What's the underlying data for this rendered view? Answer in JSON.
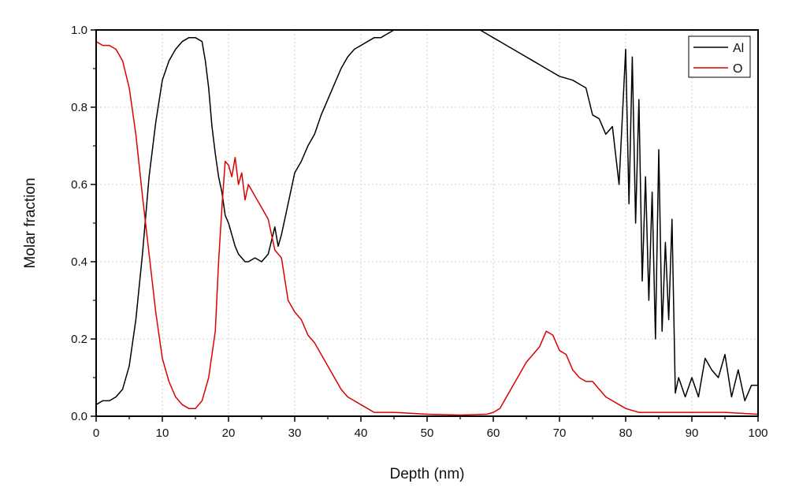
{
  "chart_data": {
    "type": "line",
    "xlabel": "Depth (nm)",
    "ylabel": "Molar fraction",
    "xlim": [
      0,
      100
    ],
    "ylim": [
      0,
      1.0
    ],
    "x_ticks": [
      "0",
      "10",
      "20",
      "30",
      "40",
      "50",
      "60",
      "70",
      "80",
      "90",
      "100"
    ],
    "y_ticks": [
      "0.0",
      "0.2",
      "0.4",
      "0.6",
      "0.8",
      "1.0"
    ],
    "grid": true,
    "legend_position": "top-right",
    "series": [
      {
        "name": "Al",
        "color": "#000000",
        "points": [
          [
            0,
            0.03
          ],
          [
            1,
            0.04
          ],
          [
            2,
            0.04
          ],
          [
            3,
            0.05
          ],
          [
            4,
            0.07
          ],
          [
            5,
            0.13
          ],
          [
            6,
            0.25
          ],
          [
            7,
            0.42
          ],
          [
            8,
            0.62
          ],
          [
            9,
            0.76
          ],
          [
            10,
            0.87
          ],
          [
            11,
            0.92
          ],
          [
            12,
            0.95
          ],
          [
            13,
            0.97
          ],
          [
            14,
            0.98
          ],
          [
            15,
            0.98
          ],
          [
            16,
            0.97
          ],
          [
            16.5,
            0.92
          ],
          [
            17,
            0.85
          ],
          [
            17.5,
            0.75
          ],
          [
            18,
            0.68
          ],
          [
            18.5,
            0.62
          ],
          [
            19,
            0.58
          ],
          [
            19.5,
            0.52
          ],
          [
            20,
            0.5
          ],
          [
            20.5,
            0.47
          ],
          [
            21,
            0.44
          ],
          [
            21.5,
            0.42
          ],
          [
            22,
            0.41
          ],
          [
            22.5,
            0.4
          ],
          [
            23,
            0.4
          ],
          [
            24,
            0.41
          ],
          [
            25,
            0.4
          ],
          [
            26,
            0.42
          ],
          [
            27,
            0.49
          ],
          [
            27.5,
            0.44
          ],
          [
            28,
            0.47
          ],
          [
            29,
            0.55
          ],
          [
            30,
            0.63
          ],
          [
            31,
            0.66
          ],
          [
            32,
            0.7
          ],
          [
            33,
            0.73
          ],
          [
            34,
            0.78
          ],
          [
            35,
            0.82
          ],
          [
            36,
            0.86
          ],
          [
            37,
            0.9
          ],
          [
            38,
            0.93
          ],
          [
            39,
            0.95
          ],
          [
            40,
            0.96
          ],
          [
            41,
            0.97
          ],
          [
            42,
            0.98
          ],
          [
            43,
            0.98
          ],
          [
            44,
            0.99
          ],
          [
            45,
            1.0
          ],
          [
            47,
            1.0
          ],
          [
            50,
            1.0
          ],
          [
            55,
            1.0
          ],
          [
            58,
            1.0
          ],
          [
            59,
            0.99
          ],
          [
            60,
            0.98
          ],
          [
            62,
            0.96
          ],
          [
            64,
            0.94
          ],
          [
            66,
            0.92
          ],
          [
            68,
            0.9
          ],
          [
            70,
            0.88
          ],
          [
            72,
            0.87
          ],
          [
            73,
            0.86
          ],
          [
            74,
            0.85
          ],
          [
            75,
            0.78
          ],
          [
            76,
            0.77
          ],
          [
            77,
            0.73
          ],
          [
            78,
            0.75
          ],
          [
            79,
            0.6
          ],
          [
            80,
            0.95
          ],
          [
            80.5,
            0.55
          ],
          [
            81,
            0.93
          ],
          [
            81.5,
            0.5
          ],
          [
            82,
            0.82
          ],
          [
            82.5,
            0.35
          ],
          [
            83,
            0.62
          ],
          [
            83.5,
            0.3
          ],
          [
            84,
            0.58
          ],
          [
            84.5,
            0.2
          ],
          [
            85,
            0.69
          ],
          [
            85.5,
            0.22
          ],
          [
            86,
            0.45
          ],
          [
            86.5,
            0.25
          ],
          [
            87,
            0.51
          ],
          [
            87.5,
            0.06
          ],
          [
            88,
            0.1
          ],
          [
            89,
            0.05
          ],
          [
            90,
            0.1
          ],
          [
            91,
            0.05
          ],
          [
            92,
            0.15
          ],
          [
            93,
            0.12
          ],
          [
            94,
            0.1
          ],
          [
            95,
            0.16
          ],
          [
            96,
            0.05
          ],
          [
            97,
            0.12
          ],
          [
            98,
            0.04
          ],
          [
            99,
            0.08
          ],
          [
            100,
            0.08
          ]
        ]
      },
      {
        "name": "O",
        "color": "#dd0000",
        "points": [
          [
            0,
            0.97
          ],
          [
            1,
            0.96
          ],
          [
            2,
            0.96
          ],
          [
            3,
            0.95
          ],
          [
            4,
            0.92
          ],
          [
            5,
            0.85
          ],
          [
            6,
            0.73
          ],
          [
            7,
            0.57
          ],
          [
            8,
            0.42
          ],
          [
            9,
            0.27
          ],
          [
            10,
            0.15
          ],
          [
            11,
            0.09
          ],
          [
            12,
            0.05
          ],
          [
            13,
            0.03
          ],
          [
            14,
            0.02
          ],
          [
            15,
            0.02
          ],
          [
            16,
            0.04
          ],
          [
            17,
            0.1
          ],
          [
            18,
            0.22
          ],
          [
            18.5,
            0.4
          ],
          [
            19,
            0.54
          ],
          [
            19.5,
            0.66
          ],
          [
            20,
            0.65
          ],
          [
            20.5,
            0.62
          ],
          [
            21,
            0.67
          ],
          [
            21.5,
            0.6
          ],
          [
            22,
            0.63
          ],
          [
            22.5,
            0.56
          ],
          [
            23,
            0.6
          ],
          [
            24,
            0.57
          ],
          [
            25,
            0.54
          ],
          [
            26,
            0.51
          ],
          [
            27,
            0.43
          ],
          [
            28,
            0.41
          ],
          [
            29,
            0.3
          ],
          [
            30,
            0.27
          ],
          [
            31,
            0.25
          ],
          [
            32,
            0.21
          ],
          [
            33,
            0.19
          ],
          [
            34,
            0.16
          ],
          [
            35,
            0.13
          ],
          [
            36,
            0.1
          ],
          [
            37,
            0.07
          ],
          [
            38,
            0.05
          ],
          [
            39,
            0.04
          ],
          [
            40,
            0.03
          ],
          [
            41,
            0.02
          ],
          [
            42,
            0.01
          ],
          [
            43,
            0.01
          ],
          [
            45,
            0.01
          ],
          [
            50,
            0.005
          ],
          [
            55,
            0.003
          ],
          [
            59,
            0.005
          ],
          [
            60,
            0.01
          ],
          [
            61,
            0.02
          ],
          [
            62,
            0.05
          ],
          [
            63,
            0.08
          ],
          [
            64,
            0.11
          ],
          [
            65,
            0.14
          ],
          [
            66,
            0.16
          ],
          [
            67,
            0.18
          ],
          [
            68,
            0.22
          ],
          [
            69,
            0.21
          ],
          [
            70,
            0.17
          ],
          [
            71,
            0.16
          ],
          [
            72,
            0.12
          ],
          [
            73,
            0.1
          ],
          [
            74,
            0.09
          ],
          [
            75,
            0.09
          ],
          [
            76,
            0.07
          ],
          [
            77,
            0.05
          ],
          [
            78,
            0.04
          ],
          [
            79,
            0.03
          ],
          [
            80,
            0.02
          ],
          [
            82,
            0.01
          ],
          [
            85,
            0.01
          ],
          [
            90,
            0.01
          ],
          [
            95,
            0.01
          ],
          [
            100,
            0.005
          ]
        ]
      }
    ]
  }
}
